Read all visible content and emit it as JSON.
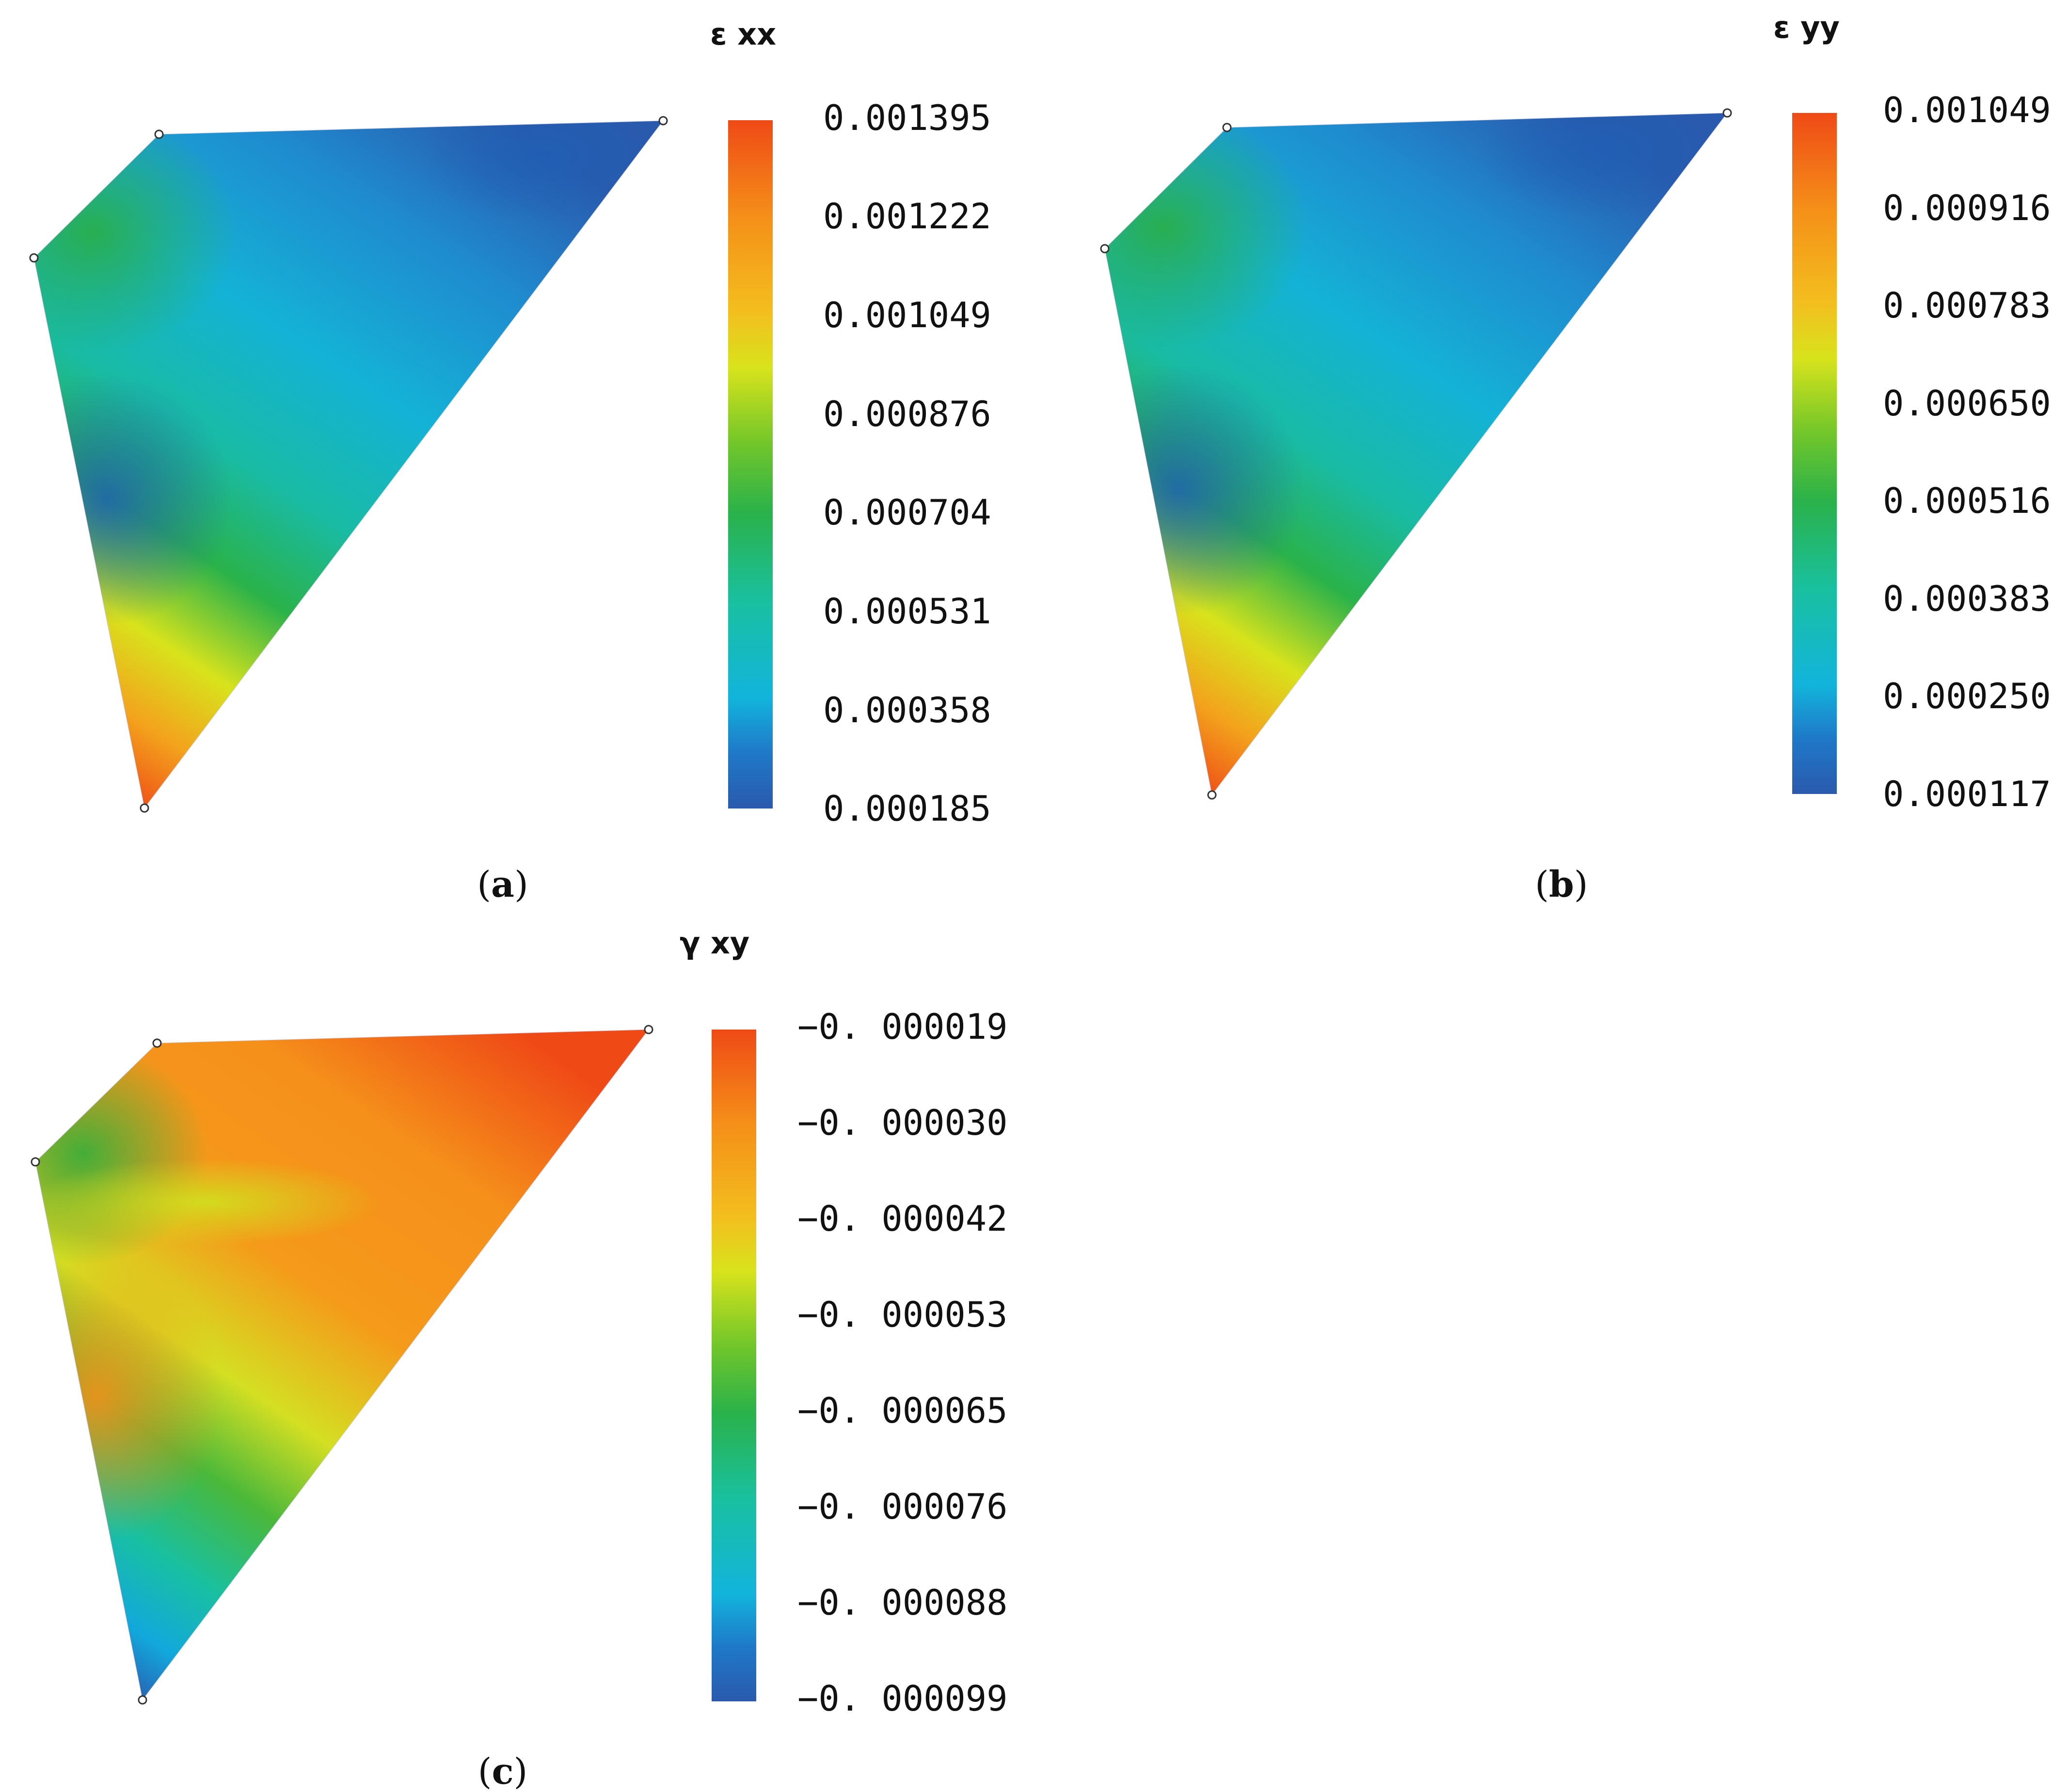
{
  "panels": [
    {
      "id": "a",
      "caption_letter": "a",
      "colorbar_title": "ε xx",
      "colors": [
        "#2a5aad",
        "#1f78c8",
        "#12b4dc",
        "#19c0a0",
        "#2ab24a",
        "#72c62a",
        "#d8e31c",
        "#f3bf1e",
        "#f58f18",
        "#ef4a16"
      ],
      "node_count": 4
    },
    {
      "id": "b",
      "caption_letter": "b",
      "colorbar_title": "ε yy",
      "colors": [
        "#2a5aad",
        "#1f78c8",
        "#12b4dc",
        "#19c0a0",
        "#2ab24a",
        "#72c62a",
        "#d8e31c",
        "#f3bf1e",
        "#f58f18",
        "#ef4a16"
      ],
      "node_count": 4
    },
    {
      "id": "c",
      "caption_letter": "c",
      "colorbar_title": "γ xy",
      "colors": [
        "#2a5aad",
        "#1f78c8",
        "#12b4dc",
        "#19c0a0",
        "#2ab24a",
        "#72c62a",
        "#d8e31c",
        "#f3bf1e",
        "#f58f18",
        "#ef4a16"
      ],
      "node_count": 4
    }
  ],
  "chart_data": [
    {
      "type": "heatmap",
      "title": "ε xx",
      "colorbar_ticks": [
        "0.001395",
        "0.001222",
        "0.001049",
        "0.000876",
        "0.000704",
        "0.000531",
        "0.000358",
        "0.000185"
      ],
      "value_range": [
        0.000185,
        0.001395
      ],
      "pattern": "low (blue) near the top-right corner and mid-left, rising to high (orange-red) at the bottom vertex; green along the top-left edge"
    },
    {
      "type": "heatmap",
      "title": "ε yy",
      "colorbar_ticks": [
        "0.001049",
        "0.000916",
        "0.000783",
        "0.000650",
        "0.000516",
        "0.000383",
        "0.000250",
        "0.000117"
      ],
      "value_range": [
        0.000117,
        0.001049
      ],
      "pattern": "low (blue) near the top-right corner and mid-left, rising to high (orange-red) at the bottom vertex; green along the top-left edge"
    },
    {
      "type": "heatmap",
      "title": "γ xy",
      "colorbar_ticks": [
        "−0. 000019",
        "−0. 000030",
        "−0. 000042",
        "−0. 000053",
        "−0. 000065",
        "−0. 000076",
        "−0. 000088",
        "−0. 000099"
      ],
      "value_range": [
        -9.9e-05,
        -1.9e-05
      ],
      "pattern": "high (orange-red) near the top-right corner and the mid-left region, decreasing to low (blue) at the bottom vertex; green along the top-left edge"
    }
  ]
}
